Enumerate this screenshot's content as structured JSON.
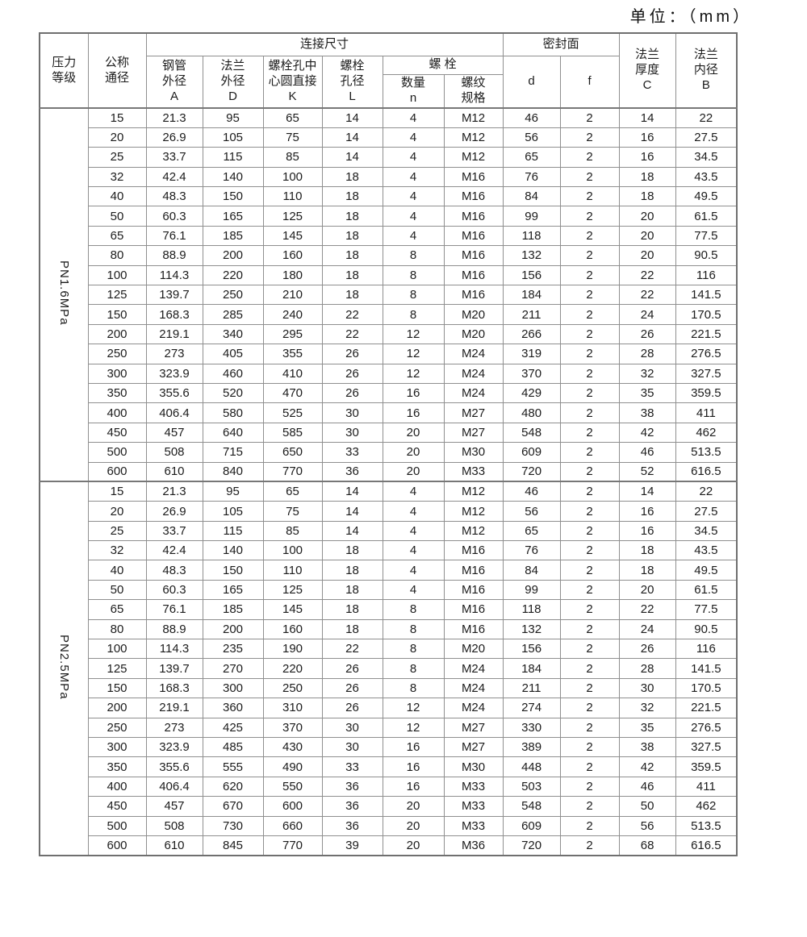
{
  "page": {
    "unit_label": "单位：（mm）"
  },
  "colors": {
    "background": "#ffffff",
    "border": "#8f8f8f",
    "text": "#1c1c1c"
  },
  "table": {
    "header": {
      "pressure_grade": "压力\n等级",
      "nominal_diameter": "公称\n通径",
      "connection_size": "连接尺寸",
      "pipe_od": "钢管\n外径\nA",
      "flange_od": "法兰\n外径\nD",
      "bolt_circle": "螺栓孔中\n心圆直接\nK",
      "bolt_hole": "螺栓\n孔径\nL",
      "bolt": "螺  栓",
      "bolt_qty": "数量\nn",
      "thread_spec": "螺纹\n规格",
      "seal_face": "密封面",
      "d": "d",
      "f": "f",
      "flange_thickness": "法兰\n厚度\nC",
      "flange_bore": "法兰\n内径\nB"
    },
    "columns_order": [
      "公称通径",
      "钢管外径A",
      "法兰外径D",
      "螺栓孔中心圆直接K",
      "螺栓孔径L",
      "数量n",
      "螺纹规格",
      "d",
      "f",
      "法兰厚度C",
      "法兰内径B"
    ],
    "sections": [
      {
        "pressure": "PN1.6MPa",
        "rows": [
          [
            "15",
            "21.3",
            "95",
            "65",
            "14",
            "4",
            "M12",
            "46",
            "2",
            "14",
            "22"
          ],
          [
            "20",
            "26.9",
            "105",
            "75",
            "14",
            "4",
            "M12",
            "56",
            "2",
            "16",
            "27.5"
          ],
          [
            "25",
            "33.7",
            "115",
            "85",
            "14",
            "4",
            "M12",
            "65",
            "2",
            "16",
            "34.5"
          ],
          [
            "32",
            "42.4",
            "140",
            "100",
            "18",
            "4",
            "M16",
            "76",
            "2",
            "18",
            "43.5"
          ],
          [
            "40",
            "48.3",
            "150",
            "110",
            "18",
            "4",
            "M16",
            "84",
            "2",
            "18",
            "49.5"
          ],
          [
            "50",
            "60.3",
            "165",
            "125",
            "18",
            "4",
            "M16",
            "99",
            "2",
            "20",
            "61.5"
          ],
          [
            "65",
            "76.1",
            "185",
            "145",
            "18",
            "4",
            "M16",
            "118",
            "2",
            "20",
            "77.5"
          ],
          [
            "80",
            "88.9",
            "200",
            "160",
            "18",
            "8",
            "M16",
            "132",
            "2",
            "20",
            "90.5"
          ],
          [
            "100",
            "114.3",
            "220",
            "180",
            "18",
            "8",
            "M16",
            "156",
            "2",
            "22",
            "116"
          ],
          [
            "125",
            "139.7",
            "250",
            "210",
            "18",
            "8",
            "M16",
            "184",
            "2",
            "22",
            "141.5"
          ],
          [
            "150",
            "168.3",
            "285",
            "240",
            "22",
            "8",
            "M20",
            "211",
            "2",
            "24",
            "170.5"
          ],
          [
            "200",
            "219.1",
            "340",
            "295",
            "22",
            "12",
            "M20",
            "266",
            "2",
            "26",
            "221.5"
          ],
          [
            "250",
            "273",
            "405",
            "355",
            "26",
            "12",
            "M24",
            "319",
            "2",
            "28",
            "276.5"
          ],
          [
            "300",
            "323.9",
            "460",
            "410",
            "26",
            "12",
            "M24",
            "370",
            "2",
            "32",
            "327.5"
          ],
          [
            "350",
            "355.6",
            "520",
            "470",
            "26",
            "16",
            "M24",
            "429",
            "2",
            "35",
            "359.5"
          ],
          [
            "400",
            "406.4",
            "580",
            "525",
            "30",
            "16",
            "M27",
            "480",
            "2",
            "38",
            "411"
          ],
          [
            "450",
            "457",
            "640",
            "585",
            "30",
            "20",
            "M27",
            "548",
            "2",
            "42",
            "462"
          ],
          [
            "500",
            "508",
            "715",
            "650",
            "33",
            "20",
            "M30",
            "609",
            "2",
            "46",
            "513.5"
          ],
          [
            "600",
            "610",
            "840",
            "770",
            "36",
            "20",
            "M33",
            "720",
            "2",
            "52",
            "616.5"
          ]
        ]
      },
      {
        "pressure": "PN2.5MPa",
        "rows": [
          [
            "15",
            "21.3",
            "95",
            "65",
            "14",
            "4",
            "M12",
            "46",
            "2",
            "14",
            "22"
          ],
          [
            "20",
            "26.9",
            "105",
            "75",
            "14",
            "4",
            "M12",
            "56",
            "2",
            "16",
            "27.5"
          ],
          [
            "25",
            "33.7",
            "115",
            "85",
            "14",
            "4",
            "M12",
            "65",
            "2",
            "16",
            "34.5"
          ],
          [
            "32",
            "42.4",
            "140",
            "100",
            "18",
            "4",
            "M16",
            "76",
            "2",
            "18",
            "43.5"
          ],
          [
            "40",
            "48.3",
            "150",
            "110",
            "18",
            "4",
            "M16",
            "84",
            "2",
            "18",
            "49.5"
          ],
          [
            "50",
            "60.3",
            "165",
            "125",
            "18",
            "4",
            "M16",
            "99",
            "2",
            "20",
            "61.5"
          ],
          [
            "65",
            "76.1",
            "185",
            "145",
            "18",
            "8",
            "M16",
            "118",
            "2",
            "22",
            "77.5"
          ],
          [
            "80",
            "88.9",
            "200",
            "160",
            "18",
            "8",
            "M16",
            "132",
            "2",
            "24",
            "90.5"
          ],
          [
            "100",
            "114.3",
            "235",
            "190",
            "22",
            "8",
            "M20",
            "156",
            "2",
            "26",
            "116"
          ],
          [
            "125",
            "139.7",
            "270",
            "220",
            "26",
            "8",
            "M24",
            "184",
            "2",
            "28",
            "141.5"
          ],
          [
            "150",
            "168.3",
            "300",
            "250",
            "26",
            "8",
            "M24",
            "211",
            "2",
            "30",
            "170.5"
          ],
          [
            "200",
            "219.1",
            "360",
            "310",
            "26",
            "12",
            "M24",
            "274",
            "2",
            "32",
            "221.5"
          ],
          [
            "250",
            "273",
            "425",
            "370",
            "30",
            "12",
            "M27",
            "330",
            "2",
            "35",
            "276.5"
          ],
          [
            "300",
            "323.9",
            "485",
            "430",
            "30",
            "16",
            "M27",
            "389",
            "2",
            "38",
            "327.5"
          ],
          [
            "350",
            "355.6",
            "555",
            "490",
            "33",
            "16",
            "M30",
            "448",
            "2",
            "42",
            "359.5"
          ],
          [
            "400",
            "406.4",
            "620",
            "550",
            "36",
            "16",
            "M33",
            "503",
            "2",
            "46",
            "411"
          ],
          [
            "450",
            "457",
            "670",
            "600",
            "36",
            "20",
            "M33",
            "548",
            "2",
            "50",
            "462"
          ],
          [
            "500",
            "508",
            "730",
            "660",
            "36",
            "20",
            "M33",
            "609",
            "2",
            "56",
            "513.5"
          ],
          [
            "600",
            "610",
            "845",
            "770",
            "39",
            "20",
            "M36",
            "720",
            "2",
            "68",
            "616.5"
          ]
        ]
      }
    ]
  }
}
